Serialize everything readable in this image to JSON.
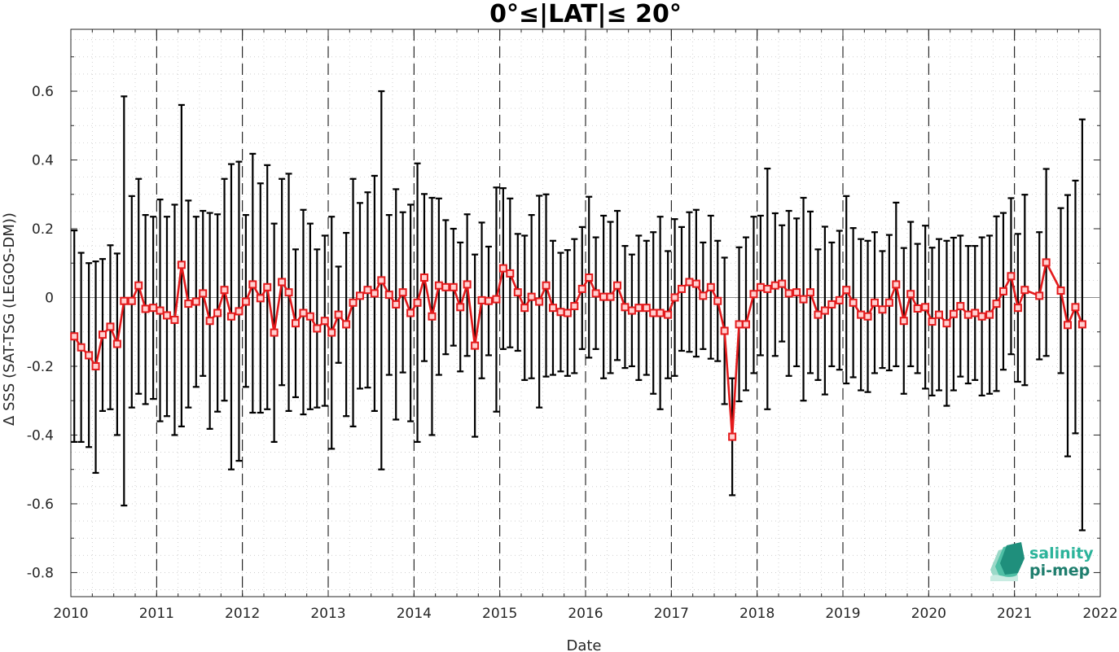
{
  "chart_data": {
    "type": "line",
    "title": "0°≤|LAT|≤ 20°",
    "xlabel": "Date",
    "ylabel": "Δ SSS (SAT-TSG (LEGOS-DM))",
    "x_axis": "year",
    "xlim": [
      2010,
      2022
    ],
    "ylim": [
      -0.87,
      0.78
    ],
    "xticks": [
      "2010",
      "2011",
      "2012",
      "2013",
      "2014",
      "2015",
      "2016",
      "2017",
      "2018",
      "2019",
      "2020",
      "2021",
      "2022"
    ],
    "yticks": [
      "-0.8",
      "-0.6",
      "-0.4",
      "-0.2",
      "0",
      "0.2",
      "0.4",
      "0.6"
    ],
    "grid": true,
    "year_markers": [
      "2011",
      "2012",
      "2013",
      "2014",
      "2015",
      "2016",
      "2017",
      "2018",
      "2019",
      "2020",
      "2021"
    ],
    "colors": {
      "mean_line": "#e41a1c",
      "error_bars": "#000000",
      "logo_teal": "#2bb39a"
    },
    "series": [
      {
        "style": "mean with ± error bars",
        "points": [
          {
            "x": 2010.04,
            "y": -0.113,
            "lo": -0.42,
            "hi": 0.195
          },
          {
            "x": 2010.12,
            "y": -0.145,
            "lo": -0.42,
            "hi": 0.13
          },
          {
            "x": 2010.21,
            "y": -0.168,
            "lo": -0.435,
            "hi": 0.1
          },
          {
            "x": 2010.29,
            "y": -0.2,
            "lo": -0.51,
            "hi": 0.105
          },
          {
            "x": 2010.37,
            "y": -0.108,
            "lo": -0.33,
            "hi": 0.112
          },
          {
            "x": 2010.46,
            "y": -0.085,
            "lo": -0.325,
            "hi": 0.152
          },
          {
            "x": 2010.54,
            "y": -0.135,
            "lo": -0.4,
            "hi": 0.128
          },
          {
            "x": 2010.62,
            "y": -0.01,
            "lo": -0.605,
            "hi": 0.585
          },
          {
            "x": 2010.71,
            "y": -0.01,
            "lo": -0.32,
            "hi": 0.295
          },
          {
            "x": 2010.79,
            "y": 0.035,
            "lo": -0.28,
            "hi": 0.345
          },
          {
            "x": 2010.87,
            "y": -0.033,
            "lo": -0.31,
            "hi": 0.24
          },
          {
            "x": 2010.96,
            "y": -0.03,
            "lo": -0.295,
            "hi": 0.235
          },
          {
            "x": 2011.04,
            "y": -0.038,
            "lo": -0.36,
            "hi": 0.285
          },
          {
            "x": 2011.12,
            "y": -0.052,
            "lo": -0.345,
            "hi": 0.235
          },
          {
            "x": 2011.21,
            "y": -0.065,
            "lo": -0.4,
            "hi": 0.27
          },
          {
            "x": 2011.29,
            "y": 0.095,
            "lo": -0.375,
            "hi": 0.56
          },
          {
            "x": 2011.37,
            "y": -0.018,
            "lo": -0.32,
            "hi": 0.282
          },
          {
            "x": 2011.46,
            "y": -0.012,
            "lo": -0.26,
            "hi": 0.235
          },
          {
            "x": 2011.54,
            "y": 0.012,
            "lo": -0.228,
            "hi": 0.252
          },
          {
            "x": 2011.62,
            "y": -0.068,
            "lo": -0.382,
            "hi": 0.246
          },
          {
            "x": 2011.71,
            "y": -0.045,
            "lo": -0.332,
            "hi": 0.242
          },
          {
            "x": 2011.79,
            "y": 0.022,
            "lo": -0.3,
            "hi": 0.345
          },
          {
            "x": 2011.87,
            "y": -0.055,
            "lo": -0.5,
            "hi": 0.388
          },
          {
            "x": 2011.96,
            "y": -0.04,
            "lo": -0.475,
            "hi": 0.395
          },
          {
            "x": 2012.04,
            "y": -0.012,
            "lo": -0.26,
            "hi": 0.24
          },
          {
            "x": 2012.12,
            "y": 0.038,
            "lo": -0.335,
            "hi": 0.418
          },
          {
            "x": 2012.21,
            "y": -0.002,
            "lo": -0.335,
            "hi": 0.332
          },
          {
            "x": 2012.29,
            "y": 0.03,
            "lo": -0.325,
            "hi": 0.385
          },
          {
            "x": 2012.37,
            "y": -0.102,
            "lo": -0.42,
            "hi": 0.215
          },
          {
            "x": 2012.46,
            "y": 0.045,
            "lo": -0.255,
            "hi": 0.345
          },
          {
            "x": 2012.54,
            "y": 0.015,
            "lo": -0.33,
            "hi": 0.36
          },
          {
            "x": 2012.62,
            "y": -0.075,
            "lo": -0.29,
            "hi": 0.14
          },
          {
            "x": 2012.71,
            "y": -0.045,
            "lo": -0.34,
            "hi": 0.255
          },
          {
            "x": 2012.79,
            "y": -0.055,
            "lo": -0.325,
            "hi": 0.215
          },
          {
            "x": 2012.87,
            "y": -0.09,
            "lo": -0.32,
            "hi": 0.14
          },
          {
            "x": 2012.96,
            "y": -0.068,
            "lo": -0.315,
            "hi": 0.18
          },
          {
            "x": 2013.04,
            "y": -0.102,
            "lo": -0.44,
            "hi": 0.235
          },
          {
            "x": 2013.12,
            "y": -0.05,
            "lo": -0.19,
            "hi": 0.09
          },
          {
            "x": 2013.21,
            "y": -0.078,
            "lo": -0.345,
            "hi": 0.188
          },
          {
            "x": 2013.29,
            "y": -0.015,
            "lo": -0.375,
            "hi": 0.345
          },
          {
            "x": 2013.37,
            "y": 0.005,
            "lo": -0.265,
            "hi": 0.275
          },
          {
            "x": 2013.46,
            "y": 0.022,
            "lo": -0.262,
            "hi": 0.306
          },
          {
            "x": 2013.54,
            "y": 0.012,
            "lo": -0.33,
            "hi": 0.354
          },
          {
            "x": 2013.62,
            "y": 0.05,
            "lo": -0.5,
            "hi": 0.6
          },
          {
            "x": 2013.71,
            "y": 0.008,
            "lo": -0.225,
            "hi": 0.24
          },
          {
            "x": 2013.79,
            "y": -0.02,
            "lo": -0.355,
            "hi": 0.315
          },
          {
            "x": 2013.87,
            "y": 0.015,
            "lo": -0.218,
            "hi": 0.248
          },
          {
            "x": 2013.96,
            "y": -0.045,
            "lo": -0.36,
            "hi": 0.27
          },
          {
            "x": 2014.04,
            "y": -0.015,
            "lo": -0.42,
            "hi": 0.39
          },
          {
            "x": 2014.12,
            "y": 0.058,
            "lo": -0.185,
            "hi": 0.301
          },
          {
            "x": 2014.21,
            "y": -0.055,
            "lo": -0.4,
            "hi": 0.29
          },
          {
            "x": 2014.29,
            "y": 0.035,
            "lo": -0.225,
            "hi": 0.288
          },
          {
            "x": 2014.37,
            "y": 0.03,
            "lo": -0.165,
            "hi": 0.225
          },
          {
            "x": 2014.46,
            "y": 0.03,
            "lo": -0.14,
            "hi": 0.2
          },
          {
            "x": 2014.54,
            "y": -0.028,
            "lo": -0.215,
            "hi": 0.16
          },
          {
            "x": 2014.62,
            "y": 0.038,
            "lo": -0.17,
            "hi": 0.242
          },
          {
            "x": 2014.71,
            "y": -0.14,
            "lo": -0.405,
            "hi": 0.125
          },
          {
            "x": 2014.79,
            "y": -0.008,
            "lo": -0.235,
            "hi": 0.218
          },
          {
            "x": 2014.87,
            "y": -0.01,
            "lo": -0.168,
            "hi": 0.148
          },
          {
            "x": 2014.96,
            "y": -0.005,
            "lo": -0.332,
            "hi": 0.32
          },
          {
            "x": 2015.04,
            "y": 0.085,
            "lo": -0.15,
            "hi": 0.318
          },
          {
            "x": 2015.12,
            "y": 0.07,
            "lo": -0.145,
            "hi": 0.288
          },
          {
            "x": 2015.21,
            "y": 0.015,
            "lo": -0.155,
            "hi": 0.185
          },
          {
            "x": 2015.29,
            "y": -0.03,
            "lo": -0.24,
            "hi": 0.18
          },
          {
            "x": 2015.37,
            "y": 0.002,
            "lo": -0.235,
            "hi": 0.24
          },
          {
            "x": 2015.46,
            "y": -0.012,
            "lo": -0.32,
            "hi": 0.296
          },
          {
            "x": 2015.54,
            "y": 0.035,
            "lo": -0.23,
            "hi": 0.3
          },
          {
            "x": 2015.62,
            "y": -0.03,
            "lo": -0.225,
            "hi": 0.165
          },
          {
            "x": 2015.71,
            "y": -0.042,
            "lo": -0.215,
            "hi": 0.13
          },
          {
            "x": 2015.79,
            "y": -0.045,
            "lo": -0.228,
            "hi": 0.138
          },
          {
            "x": 2015.87,
            "y": -0.025,
            "lo": -0.22,
            "hi": 0.17
          },
          {
            "x": 2015.96,
            "y": 0.025,
            "lo": -0.15,
            "hi": 0.205
          },
          {
            "x": 2016.04,
            "y": 0.058,
            "lo": -0.175,
            "hi": 0.293
          },
          {
            "x": 2016.12,
            "y": 0.012,
            "lo": -0.15,
            "hi": 0.175
          },
          {
            "x": 2016.21,
            "y": 0.002,
            "lo": -0.235,
            "hi": 0.238
          },
          {
            "x": 2016.29,
            "y": 0.002,
            "lo": -0.22,
            "hi": 0.22
          },
          {
            "x": 2016.37,
            "y": 0.035,
            "lo": -0.182,
            "hi": 0.252
          },
          {
            "x": 2016.46,
            "y": -0.028,
            "lo": -0.205,
            "hi": 0.15
          },
          {
            "x": 2016.54,
            "y": -0.038,
            "lo": -0.2,
            "hi": 0.125
          },
          {
            "x": 2016.62,
            "y": -0.03,
            "lo": -0.24,
            "hi": 0.18
          },
          {
            "x": 2016.71,
            "y": -0.03,
            "lo": -0.225,
            "hi": 0.165
          },
          {
            "x": 2016.79,
            "y": -0.045,
            "lo": -0.28,
            "hi": 0.19
          },
          {
            "x": 2016.87,
            "y": -0.045,
            "lo": -0.325,
            "hi": 0.235
          },
          {
            "x": 2016.96,
            "y": -0.05,
            "lo": -0.235,
            "hi": 0.135
          },
          {
            "x": 2017.04,
            "y": 0.0,
            "lo": -0.228,
            "hi": 0.228
          },
          {
            "x": 2017.12,
            "y": 0.025,
            "lo": -0.155,
            "hi": 0.205
          },
          {
            "x": 2017.21,
            "y": 0.045,
            "lo": -0.158,
            "hi": 0.248
          },
          {
            "x": 2017.29,
            "y": 0.04,
            "lo": -0.172,
            "hi": 0.255
          },
          {
            "x": 2017.37,
            "y": 0.005,
            "lo": -0.15,
            "hi": 0.16
          },
          {
            "x": 2017.46,
            "y": 0.03,
            "lo": -0.178,
            "hi": 0.238
          },
          {
            "x": 2017.54,
            "y": -0.01,
            "lo": -0.185,
            "hi": 0.165
          },
          {
            "x": 2017.62,
            "y": -0.097,
            "lo": -0.31,
            "hi": 0.116
          },
          {
            "x": 2017.71,
            "y": -0.405,
            "lo": -0.575,
            "hi": -0.235
          },
          {
            "x": 2017.79,
            "y": -0.078,
            "lo": -0.302,
            "hi": 0.146
          },
          {
            "x": 2017.87,
            "y": -0.078,
            "lo": -0.27,
            "hi": 0.175
          },
          {
            "x": 2017.96,
            "y": 0.01,
            "lo": -0.22,
            "hi": 0.235
          },
          {
            "x": 2018.04,
            "y": 0.03,
            "lo": -0.168,
            "hi": 0.238
          },
          {
            "x": 2018.12,
            "y": 0.025,
            "lo": -0.325,
            "hi": 0.375
          },
          {
            "x": 2018.21,
            "y": 0.035,
            "lo": -0.17,
            "hi": 0.245
          },
          {
            "x": 2018.29,
            "y": 0.04,
            "lo": -0.128,
            "hi": 0.21
          },
          {
            "x": 2018.37,
            "y": 0.012,
            "lo": -0.228,
            "hi": 0.252
          },
          {
            "x": 2018.46,
            "y": 0.015,
            "lo": -0.2,
            "hi": 0.23
          },
          {
            "x": 2018.54,
            "y": -0.005,
            "lo": -0.3,
            "hi": 0.29
          },
          {
            "x": 2018.62,
            "y": 0.015,
            "lo": -0.22,
            "hi": 0.25
          },
          {
            "x": 2018.71,
            "y": -0.05,
            "lo": -0.24,
            "hi": 0.14
          },
          {
            "x": 2018.79,
            "y": -0.038,
            "lo": -0.282,
            "hi": 0.206
          },
          {
            "x": 2018.87,
            "y": -0.02,
            "lo": -0.2,
            "hi": 0.16
          },
          {
            "x": 2018.96,
            "y": -0.008,
            "lo": -0.21,
            "hi": 0.194
          },
          {
            "x": 2019.04,
            "y": 0.022,
            "lo": -0.25,
            "hi": 0.295
          },
          {
            "x": 2019.12,
            "y": -0.015,
            "lo": -0.232,
            "hi": 0.202
          },
          {
            "x": 2019.21,
            "y": -0.05,
            "lo": -0.27,
            "hi": 0.17
          },
          {
            "x": 2019.29,
            "y": -0.055,
            "lo": -0.275,
            "hi": 0.165
          },
          {
            "x": 2019.37,
            "y": -0.015,
            "lo": -0.22,
            "hi": 0.19
          },
          {
            "x": 2019.46,
            "y": -0.035,
            "lo": -0.205,
            "hi": 0.135
          },
          {
            "x": 2019.54,
            "y": -0.015,
            "lo": -0.212,
            "hi": 0.182
          },
          {
            "x": 2019.62,
            "y": 0.038,
            "lo": -0.2,
            "hi": 0.276
          },
          {
            "x": 2019.71,
            "y": -0.068,
            "lo": -0.28,
            "hi": 0.144
          },
          {
            "x": 2019.79,
            "y": 0.01,
            "lo": -0.2,
            "hi": 0.22
          },
          {
            "x": 2019.87,
            "y": -0.032,
            "lo": -0.22,
            "hi": 0.156
          },
          {
            "x": 2019.96,
            "y": -0.028,
            "lo": -0.265,
            "hi": 0.209
          },
          {
            "x": 2020.04,
            "y": -0.07,
            "lo": -0.285,
            "hi": 0.145
          },
          {
            "x": 2020.12,
            "y": -0.05,
            "lo": -0.27,
            "hi": 0.17
          },
          {
            "x": 2020.21,
            "y": -0.075,
            "lo": -0.315,
            "hi": 0.165
          },
          {
            "x": 2020.29,
            "y": -0.048,
            "lo": -0.27,
            "hi": 0.174
          },
          {
            "x": 2020.37,
            "y": -0.025,
            "lo": -0.23,
            "hi": 0.18
          },
          {
            "x": 2020.46,
            "y": -0.05,
            "lo": -0.25,
            "hi": 0.15
          },
          {
            "x": 2020.54,
            "y": -0.045,
            "lo": -0.24,
            "hi": 0.15
          },
          {
            "x": 2020.62,
            "y": -0.055,
            "lo": -0.285,
            "hi": 0.175
          },
          {
            "x": 2020.71,
            "y": -0.05,
            "lo": -0.28,
            "hi": 0.18
          },
          {
            "x": 2020.79,
            "y": -0.018,
            "lo": -0.272,
            "hi": 0.236
          },
          {
            "x": 2020.87,
            "y": 0.018,
            "lo": -0.21,
            "hi": 0.246
          },
          {
            "x": 2020.96,
            "y": 0.062,
            "lo": -0.165,
            "hi": 0.289
          },
          {
            "x": 2021.04,
            "y": -0.03,
            "lo": -0.245,
            "hi": 0.185
          },
          {
            "x": 2021.12,
            "y": 0.022,
            "lo": -0.255,
            "hi": 0.299
          },
          {
            "x": 2021.29,
            "y": 0.005,
            "lo": -0.18,
            "hi": 0.19
          },
          {
            "x": 2021.37,
            "y": 0.102,
            "lo": -0.17,
            "hi": 0.374
          },
          {
            "x": 2021.54,
            "y": 0.02,
            "lo": -0.22,
            "hi": 0.26
          },
          {
            "x": 2021.62,
            "y": -0.08,
            "lo": -0.462,
            "hi": 0.298
          },
          {
            "x": 2021.71,
            "y": -0.028,
            "lo": -0.395,
            "hi": 0.34
          },
          {
            "x": 2021.79,
            "y": -0.078,
            "lo": -0.677,
            "hi": 0.518
          }
        ]
      }
    ]
  },
  "logo": {
    "line1": "salinity",
    "line2": "pi-mep"
  }
}
